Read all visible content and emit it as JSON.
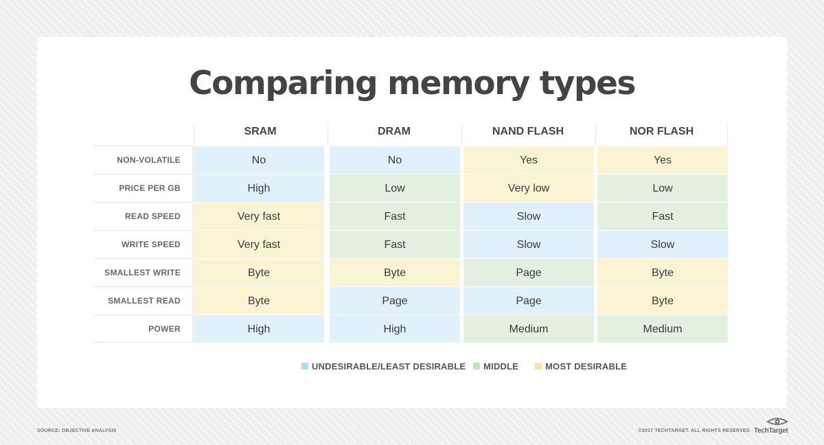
{
  "title": "Comparing memory types",
  "columns": [
    "SRAM",
    "DRAM",
    "NAND FLASH",
    "NOR FLASH"
  ],
  "rows": [
    {
      "label": "NON-VOLATILE",
      "values": [
        "No",
        "No",
        "Yes",
        "Yes"
      ],
      "ratings": [
        "undesirable",
        "undesirable",
        "most",
        "most"
      ]
    },
    {
      "label": "PRICE PER GB",
      "values": [
        "High",
        "Low",
        "Very low",
        "Low"
      ],
      "ratings": [
        "undesirable",
        "middle",
        "most",
        "middle"
      ]
    },
    {
      "label": "READ SPEED",
      "values": [
        "Very fast",
        "Fast",
        "Slow",
        "Fast"
      ],
      "ratings": [
        "most",
        "middle",
        "undesirable",
        "middle"
      ]
    },
    {
      "label": "WRITE SPEED",
      "values": [
        "Very fast",
        "Fast",
        "Slow",
        "Slow"
      ],
      "ratings": [
        "most",
        "middle",
        "undesirable",
        "undesirable"
      ]
    },
    {
      "label": "SMALLEST WRITE",
      "values": [
        "Byte",
        "Byte",
        "Page",
        "Byte"
      ],
      "ratings": [
        "most",
        "most",
        "middle",
        "most"
      ]
    },
    {
      "label": "SMALLEST READ",
      "values": [
        "Byte",
        "Page",
        "Page",
        "Byte"
      ],
      "ratings": [
        "most",
        "undesirable",
        "undesirable",
        "most"
      ]
    },
    {
      "label": "POWER",
      "values": [
        "High",
        "High",
        "Medium",
        "Medium"
      ],
      "ratings": [
        "undesirable",
        "undesirable",
        "middle",
        "middle"
      ]
    }
  ],
  "legend": {
    "undesirable": {
      "label": "UNDESIRABLE/LEAST DESIRABLE",
      "color": "#a9ddf3"
    },
    "middle": {
      "label": "MIDDLE",
      "color": "#c6e3be"
    },
    "most": {
      "label": "MOST DESIRABLE",
      "color": "#f6e3a6"
    }
  },
  "footer": {
    "source": "SOURCE: OBJECTIVE ANALYSIS",
    "copyright": "©2017 TECHTARGET. ALL RIGHTS RESERVED",
    "logo_text": "TechTarget",
    "logo_icon": "techtarget-eye-icon"
  }
}
